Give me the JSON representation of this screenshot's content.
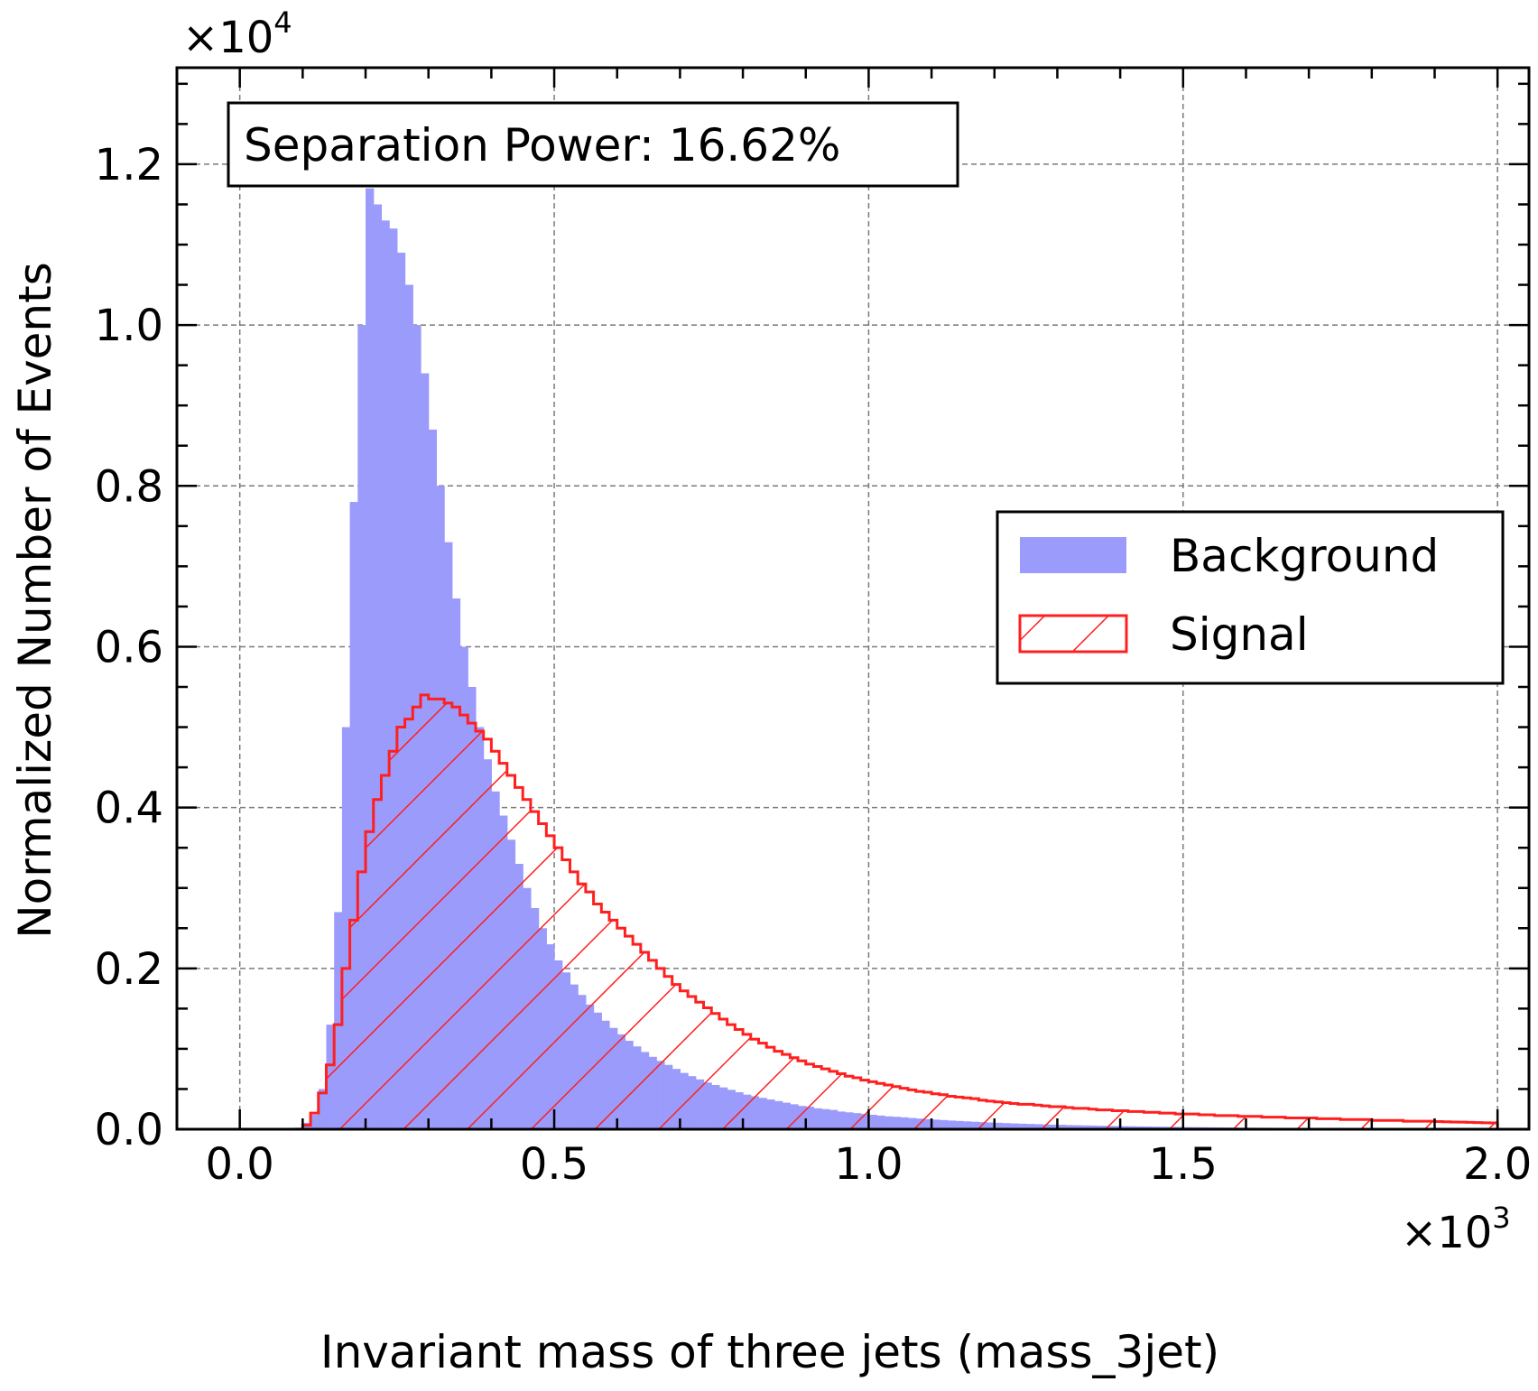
{
  "chart_data": {
    "type": "histogram",
    "xlabel": "Invariant mass of three jets (mass_3jet)",
    "ylabel": "Normalized Number of Events",
    "x_multiplier": "×10",
    "x_multiplier_exp": "3",
    "y_multiplier": "×10",
    "y_multiplier_exp": "4",
    "xlim": [
      -0.1,
      2.05
    ],
    "ylim": [
      0,
      1.32
    ],
    "x_unit_scale": 1000,
    "y_unit_scale": 10000,
    "xticks": [
      0.0,
      0.5,
      1.0,
      1.5,
      2.0
    ],
    "xtick_labels": [
      "0.0",
      "0.5",
      "1.0",
      "1.5",
      "2.0"
    ],
    "yticks": [
      0.0,
      0.2,
      0.4,
      0.6,
      0.8,
      1.0,
      1.2
    ],
    "ytick_labels": [
      "0.0",
      "0.2",
      "0.4",
      "0.6",
      "0.8",
      "1.0",
      "1.2"
    ],
    "grid": true,
    "legend_position": "center-right",
    "annotation": "Separation Power: 16.62%",
    "bins": {
      "start": 0.0,
      "width": 0.0125,
      "count": 160
    },
    "series": [
      {
        "name": "Background",
        "style": "filled",
        "color": "#9b9bfc",
        "values": [
          0,
          0,
          0,
          0,
          0,
          0,
          0.0005,
          0.002,
          0.008,
          0.018,
          0.05,
          0.13,
          0.27,
          0.5,
          0.78,
          1.0,
          1.17,
          1.15,
          1.13,
          1.12,
          1.09,
          1.05,
          1.0,
          0.94,
          0.87,
          0.8,
          0.73,
          0.66,
          0.6,
          0.55,
          0.5,
          0.46,
          0.42,
          0.39,
          0.36,
          0.33,
          0.3,
          0.275,
          0.25,
          0.23,
          0.21,
          0.195,
          0.18,
          0.167,
          0.155,
          0.145,
          0.135,
          0.126,
          0.118,
          0.11,
          0.103,
          0.096,
          0.09,
          0.085,
          0.08,
          0.075,
          0.07,
          0.066,
          0.062,
          0.058,
          0.055,
          0.052,
          0.049,
          0.046,
          0.043,
          0.041,
          0.039,
          0.037,
          0.035,
          0.033,
          0.031,
          0.029,
          0.028,
          0.026,
          0.025,
          0.024,
          0.022,
          0.021,
          0.02,
          0.019,
          0.018,
          0.017,
          0.016,
          0.0155,
          0.0148,
          0.014,
          0.0133,
          0.0126,
          0.012,
          0.0114,
          0.0108,
          0.0103,
          0.0098,
          0.0093,
          0.0088,
          0.0084,
          0.008,
          0.0076,
          0.0072,
          0.0069,
          0.0066,
          0.0063,
          0.006,
          0.0057,
          0.0055,
          0.0052,
          0.005,
          0.0048,
          0.0046,
          0.0044,
          0.0042,
          0.004,
          0.0038,
          0.0037,
          0.0035,
          0.0034,
          0.0032,
          0.0031,
          0.003,
          0.0029,
          0.0027,
          0.0026,
          0.0025,
          0.0024,
          0.0023,
          0.0022,
          0.0021,
          0.002,
          0.0019,
          0.0018,
          0.0018,
          0.0017,
          0.0016,
          0.0016,
          0.0015,
          0.0014,
          0.0014,
          0.0013,
          0.0013,
          0.0012,
          0.0012,
          0.0011,
          0.0011,
          0.001,
          0.001,
          0.001,
          0.0009,
          0.0009,
          0.0009,
          0.0008,
          0.0008,
          0.0008,
          0.0007,
          0.0007,
          0.0007,
          0.0007,
          0.0006,
          0.0006,
          0.0006,
          0.0006,
          0.0006,
          0.0005
        ]
      },
      {
        "name": "Signal",
        "style": "hatched-step",
        "color": "#ff1f1f",
        "values": [
          0,
          0,
          0,
          0,
          0,
          0,
          0,
          0,
          0.005,
          0.02,
          0.045,
          0.08,
          0.13,
          0.2,
          0.26,
          0.32,
          0.37,
          0.41,
          0.44,
          0.47,
          0.5,
          0.51,
          0.525,
          0.54,
          0.535,
          0.535,
          0.53,
          0.525,
          0.515,
          0.505,
          0.495,
          0.485,
          0.47,
          0.455,
          0.44,
          0.425,
          0.41,
          0.395,
          0.38,
          0.365,
          0.35,
          0.335,
          0.32,
          0.305,
          0.295,
          0.28,
          0.27,
          0.26,
          0.25,
          0.24,
          0.23,
          0.22,
          0.21,
          0.2,
          0.19,
          0.18,
          0.172,
          0.165,
          0.158,
          0.151,
          0.144,
          0.137,
          0.13,
          0.124,
          0.118,
          0.112,
          0.107,
          0.102,
          0.097,
          0.093,
          0.089,
          0.085,
          0.081,
          0.078,
          0.075,
          0.072,
          0.069,
          0.066,
          0.064,
          0.061,
          0.059,
          0.057,
          0.055,
          0.053,
          0.051,
          0.049,
          0.047,
          0.046,
          0.044,
          0.043,
          0.041,
          0.04,
          0.039,
          0.038,
          0.036,
          0.035,
          0.034,
          0.033,
          0.032,
          0.031,
          0.031,
          0.03,
          0.029,
          0.028,
          0.028,
          0.027,
          0.026,
          0.026,
          0.025,
          0.024,
          0.024,
          0.023,
          0.023,
          0.022,
          0.022,
          0.021,
          0.021,
          0.02,
          0.02,
          0.019,
          0.019,
          0.019,
          0.018,
          0.018,
          0.017,
          0.017,
          0.017,
          0.016,
          0.016,
          0.016,
          0.015,
          0.015,
          0.015,
          0.014,
          0.014,
          0.014,
          0.014,
          0.013,
          0.013,
          0.013,
          0.012,
          0.012,
          0.012,
          0.012,
          0.011,
          0.011,
          0.011,
          0.011,
          0.01,
          0.01,
          0.01,
          0.01,
          0.0095,
          0.0092,
          0.009,
          0.0088,
          0.0085,
          0.0083,
          0.008,
          0.0078
        ]
      }
    ]
  }
}
